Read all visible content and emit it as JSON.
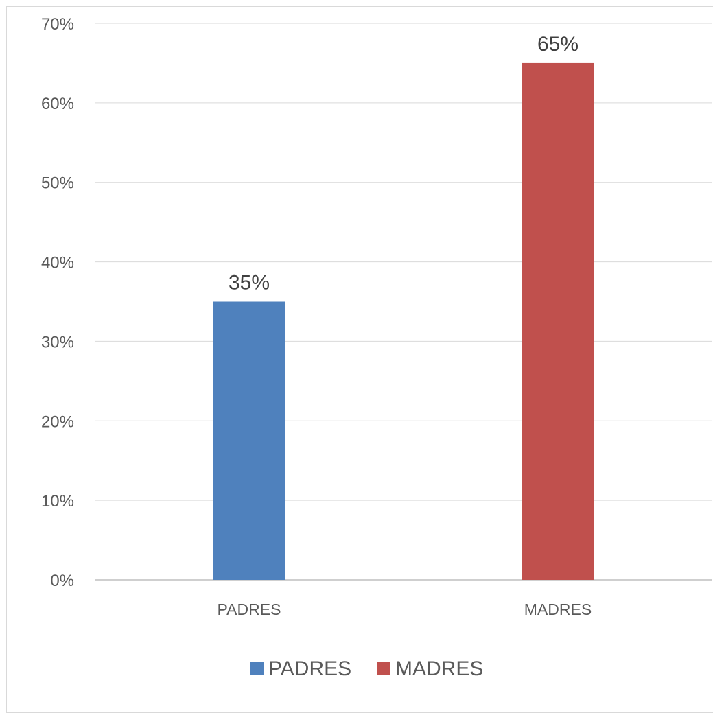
{
  "chart_data": {
    "type": "bar",
    "categories": [
      "PADRES",
      "MADRES"
    ],
    "values": [
      35,
      65
    ],
    "value_labels": [
      "35%",
      "65%"
    ],
    "colors": [
      "#4f81bd",
      "#c0504d"
    ],
    "ylim": [
      0,
      70
    ],
    "y_ticks": [
      0,
      10,
      20,
      30,
      40,
      50,
      60,
      70
    ],
    "y_tick_labels": [
      "0%",
      "10%",
      "20%",
      "30%",
      "40%",
      "50%",
      "60%",
      "70%"
    ],
    "title": "",
    "xlabel": "",
    "ylabel": "",
    "grid": true,
    "legend": {
      "placement": "bottom",
      "entries": [
        "PADRES",
        "MADRES"
      ]
    }
  }
}
